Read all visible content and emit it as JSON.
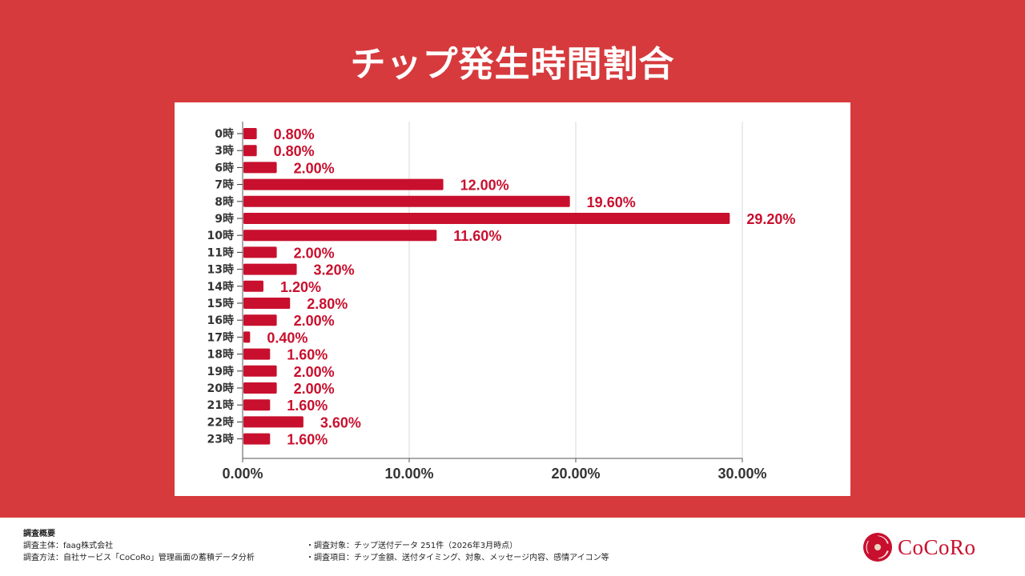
{
  "header": {
    "title": "チップ発生時間割合"
  },
  "chart_data": {
    "type": "bar",
    "orientation": "horizontal",
    "title": "チップ発生時間割合",
    "xlabel": "",
    "ylabel": "",
    "categories": [
      "0時",
      "3時",
      "6時",
      "7時",
      "8時",
      "9時",
      "10時",
      "11時",
      "13時",
      "14時",
      "15時",
      "16時",
      "17時",
      "18時",
      "19時",
      "20時",
      "21時",
      "22時",
      "23時"
    ],
    "values": [
      0.8,
      0.8,
      2.0,
      12.0,
      19.6,
      29.2,
      11.6,
      2.0,
      3.2,
      1.2,
      2.8,
      2.0,
      0.4,
      1.6,
      2.0,
      2.0,
      1.6,
      3.6,
      1.6
    ],
    "value_labels": [
      "0.80%",
      "0.80%",
      "2.00%",
      "12.00%",
      "19.60%",
      "29.20%",
      "11.60%",
      "2.00%",
      "3.20%",
      "1.20%",
      "2.80%",
      "2.00%",
      "0.40%",
      "1.60%",
      "2.00%",
      "2.00%",
      "1.60%",
      "3.60%",
      "1.60%"
    ],
    "xlim": [
      0,
      30
    ],
    "xticks": [
      0,
      10,
      20,
      30
    ],
    "xtick_labels": [
      "0.00%",
      "10.00%",
      "20.00%",
      "30.00%"
    ],
    "grid": true,
    "legend": "none",
    "bar_color": "#c8102e",
    "label_color": "#c8102e"
  },
  "footer": {
    "survey_title": "調査概要",
    "left_lines": [
      "調査主体：faag株式会社",
      "調査方法：自社サービス「CoCoRo」管理画面の蓄積データ分析"
    ],
    "right_lines": [
      "・調査対象：チップ送付データ 251件（2026年3月時点）",
      "・調査項目：チップ金額、送付タイミング、対象、メッセージ内容、感情アイコン等"
    ],
    "logo_text": "CoCoRo"
  },
  "colors": {
    "background": "#d63a3d",
    "accent": "#c8102e",
    "panel": "#ffffff"
  }
}
